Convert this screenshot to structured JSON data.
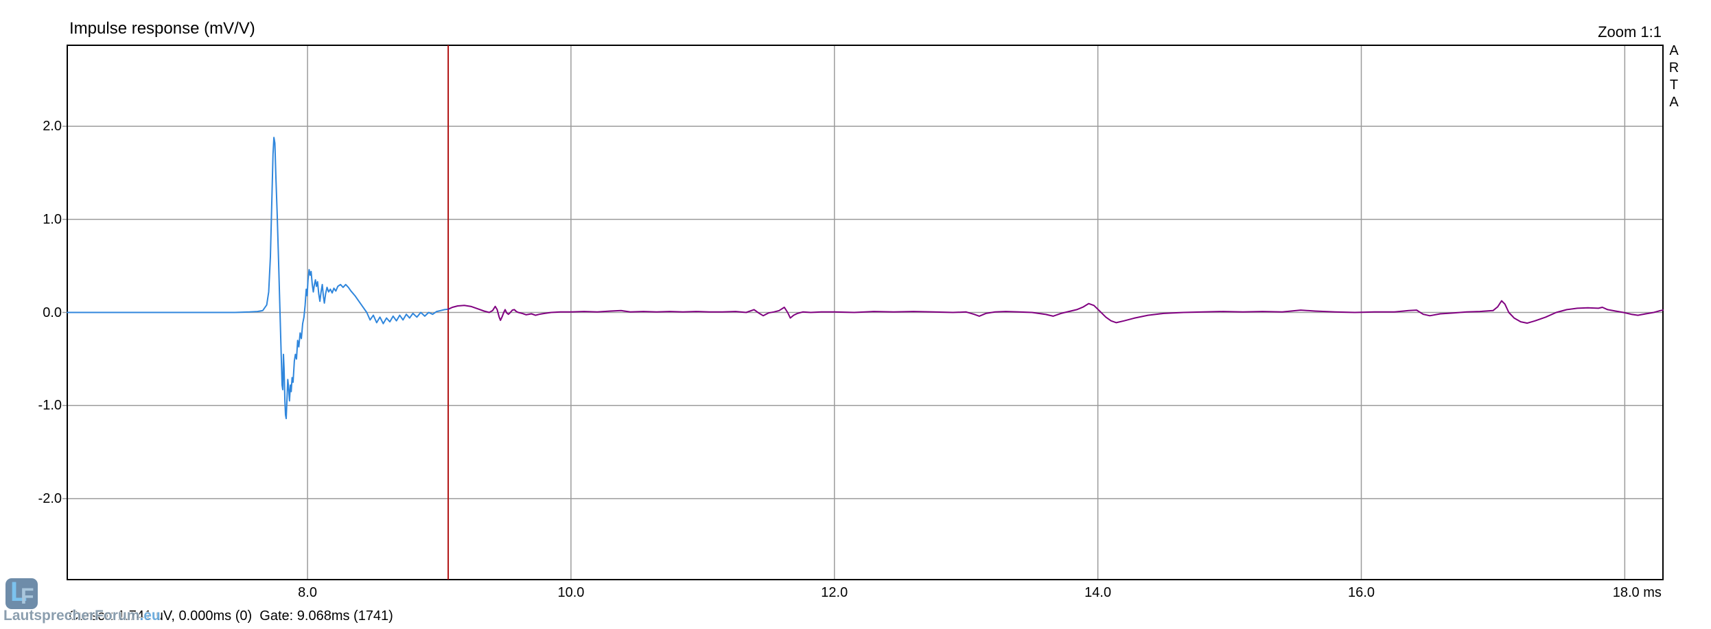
{
  "header": {
    "title": "Impulse response (mV/V)",
    "zoom_label": "Zoom 1:1",
    "brand": "ARTA"
  },
  "status_bar": {
    "text": "Cursor: 1.741 uV, 0.000ms (0)  Gate: 9.068ms (1741)"
  },
  "watermark": {
    "logo_l": "L",
    "logo_f": "F",
    "text_main": "LautsprecherForum",
    "text_tld": ".eu",
    "colors": {
      "logo_bg": "#6e8ca9",
      "logo_letter": "#7cc2ee",
      "text": "#8296a8",
      "tld": "#64a8dc"
    }
  },
  "chart_data": {
    "type": "line",
    "title": "Impulse response (mV/V)",
    "x_unit": "ms",
    "xlim": [
      6.176,
      18.29
    ],
    "ylim": [
      -2.87,
      2.87
    ],
    "x_ticks": [
      8,
      10,
      12,
      14,
      16,
      18
    ],
    "x_tick_labels": [
      "8.0",
      "10.0",
      "12.0",
      "14.0",
      "16.0",
      "18.0 ms"
    ],
    "y_ticks": [
      2,
      1,
      0,
      -1,
      -2
    ],
    "y_tick_labels": [
      "2.0",
      "1.0",
      "0.0",
      "-1.0",
      "-2.0"
    ],
    "grid": true,
    "legend": "none",
    "cursor": {
      "value_uV": 1.741,
      "time_ms": 0.0,
      "sample": 0
    },
    "gate": {
      "time_ms": 9.068,
      "sample": 1741
    },
    "colors": {
      "pre_gate": "#2f86dc",
      "post_gate": "#800080",
      "gate_line": "#b01212",
      "grid": "#9b9b9b",
      "border": "#000000"
    },
    "series": [
      {
        "name": "impulse-pre-gate",
        "color_key": "pre_gate",
        "points": [
          [
            6.176,
            0
          ],
          [
            6.5,
            0
          ],
          [
            6.9,
            0
          ],
          [
            7.2,
            0
          ],
          [
            7.45,
            0
          ],
          [
            7.56,
            0.005
          ],
          [
            7.62,
            0.01
          ],
          [
            7.66,
            0.02
          ],
          [
            7.69,
            0.08
          ],
          [
            7.705,
            0.22
          ],
          [
            7.718,
            0.6
          ],
          [
            7.728,
            1.15
          ],
          [
            7.738,
            1.7
          ],
          [
            7.745,
            1.88
          ],
          [
            7.752,
            1.82
          ],
          [
            7.76,
            1.45
          ],
          [
            7.77,
            1.05
          ],
          [
            7.78,
            0.55
          ],
          [
            7.79,
            0.05
          ],
          [
            7.8,
            -0.45
          ],
          [
            7.807,
            -0.78
          ],
          [
            7.812,
            -0.83
          ],
          [
            7.817,
            -0.45
          ],
          [
            7.822,
            -0.6
          ],
          [
            7.828,
            -0.95
          ],
          [
            7.833,
            -1.1
          ],
          [
            7.838,
            -1.14
          ],
          [
            7.845,
            -0.9
          ],
          [
            7.85,
            -0.72
          ],
          [
            7.856,
            -0.8
          ],
          [
            7.863,
            -0.95
          ],
          [
            7.87,
            -0.78
          ],
          [
            7.876,
            -0.85
          ],
          [
            7.883,
            -0.7
          ],
          [
            7.89,
            -0.75
          ],
          [
            7.9,
            -0.52
          ],
          [
            7.908,
            -0.45
          ],
          [
            7.916,
            -0.5
          ],
          [
            7.925,
            -0.3
          ],
          [
            7.934,
            -0.37
          ],
          [
            7.944,
            -0.22
          ],
          [
            7.953,
            -0.28
          ],
          [
            7.963,
            -0.12
          ],
          [
            7.973,
            -0.05
          ],
          [
            7.982,
            0.08
          ],
          [
            7.99,
            0.25
          ],
          [
            7.997,
            0.18
          ],
          [
            8.004,
            0.35
          ],
          [
            8.012,
            0.46
          ],
          [
            8.02,
            0.4
          ],
          [
            8.027,
            0.44
          ],
          [
            8.036,
            0.3
          ],
          [
            8.044,
            0.22
          ],
          [
            8.052,
            0.3
          ],
          [
            8.06,
            0.35
          ],
          [
            8.068,
            0.28
          ],
          [
            8.076,
            0.33
          ],
          [
            8.085,
            0.2
          ],
          [
            8.094,
            0.12
          ],
          [
            8.103,
            0.22
          ],
          [
            8.112,
            0.3
          ],
          [
            8.12,
            0.18
          ],
          [
            8.128,
            0.1
          ],
          [
            8.137,
            0.2
          ],
          [
            8.148,
            0.27
          ],
          [
            8.16,
            0.22
          ],
          [
            8.173,
            0.25
          ],
          [
            8.187,
            0.21
          ],
          [
            8.2,
            0.26
          ],
          [
            8.215,
            0.23
          ],
          [
            8.23,
            0.28
          ],
          [
            8.25,
            0.3
          ],
          [
            8.27,
            0.27
          ],
          [
            8.29,
            0.3
          ],
          [
            8.31,
            0.27
          ],
          [
            8.33,
            0.23
          ],
          [
            8.36,
            0.18
          ],
          [
            8.39,
            0.12
          ],
          [
            8.42,
            0.06
          ],
          [
            8.45,
            0.0
          ],
          [
            8.475,
            -0.08
          ],
          [
            8.5,
            -0.03
          ],
          [
            8.525,
            -0.11
          ],
          [
            8.55,
            -0.05
          ],
          [
            8.575,
            -0.12
          ],
          [
            8.6,
            -0.06
          ],
          [
            8.625,
            -0.1
          ],
          [
            8.65,
            -0.04
          ],
          [
            8.675,
            -0.09
          ],
          [
            8.7,
            -0.03
          ],
          [
            8.725,
            -0.08
          ],
          [
            8.75,
            -0.02
          ],
          [
            8.775,
            -0.06
          ],
          [
            8.8,
            -0.01
          ],
          [
            8.83,
            -0.05
          ],
          [
            8.86,
            0.0
          ],
          [
            8.89,
            -0.04
          ],
          [
            8.92,
            0.0
          ],
          [
            8.95,
            -0.02
          ],
          [
            8.98,
            0.01
          ],
          [
            9.01,
            0.02
          ],
          [
            9.04,
            0.03
          ],
          [
            9.068,
            0.035
          ]
        ]
      },
      {
        "name": "impulse-post-gate",
        "color_key": "post_gate",
        "points": [
          [
            9.068,
            0.035
          ],
          [
            9.1,
            0.055
          ],
          [
            9.14,
            0.07
          ],
          [
            9.19,
            0.075
          ],
          [
            9.24,
            0.065
          ],
          [
            9.29,
            0.04
          ],
          [
            9.34,
            0.015
          ],
          [
            9.38,
            0.0
          ],
          [
            9.405,
            0.02
          ],
          [
            9.425,
            0.065
          ],
          [
            9.44,
            0.03
          ],
          [
            9.455,
            -0.05
          ],
          [
            9.465,
            -0.085
          ],
          [
            9.478,
            -0.045
          ],
          [
            9.49,
            0.0
          ],
          [
            9.5,
            0.03
          ],
          [
            9.512,
            -0.005
          ],
          [
            9.525,
            -0.02
          ],
          [
            9.54,
            0.0
          ],
          [
            9.555,
            0.025
          ],
          [
            9.57,
            0.03
          ],
          [
            9.585,
            0.01
          ],
          [
            9.6,
            0.0
          ],
          [
            9.63,
            -0.01
          ],
          [
            9.66,
            -0.025
          ],
          [
            9.7,
            -0.015
          ],
          [
            9.73,
            -0.03
          ],
          [
            9.76,
            -0.02
          ],
          [
            9.8,
            -0.01
          ],
          [
            9.85,
            0.0
          ],
          [
            9.92,
            0.005
          ],
          [
            10.0,
            0.005
          ],
          [
            10.1,
            0.01
          ],
          [
            10.2,
            0.005
          ],
          [
            10.3,
            0.015
          ],
          [
            10.38,
            0.02
          ],
          [
            10.45,
            0.005
          ],
          [
            10.55,
            0.01
          ],
          [
            10.65,
            0.005
          ],
          [
            10.75,
            0.01
          ],
          [
            10.85,
            0.005
          ],
          [
            10.95,
            0.01
          ],
          [
            11.05,
            0.005
          ],
          [
            11.15,
            0.005
          ],
          [
            11.25,
            0.01
          ],
          [
            11.33,
            0.0
          ],
          [
            11.39,
            0.03
          ],
          [
            11.43,
            -0.01
          ],
          [
            11.46,
            -0.035
          ],
          [
            11.5,
            -0.005
          ],
          [
            11.54,
            0.005
          ],
          [
            11.58,
            0.02
          ],
          [
            11.62,
            0.055
          ],
          [
            11.645,
            0.0
          ],
          [
            11.665,
            -0.06
          ],
          [
            11.69,
            -0.03
          ],
          [
            11.72,
            -0.01
          ],
          [
            11.76,
            0.005
          ],
          [
            11.82,
            0.0
          ],
          [
            11.9,
            0.005
          ],
          [
            12.0,
            0.005
          ],
          [
            12.15,
            0.0
          ],
          [
            12.3,
            0.01
          ],
          [
            12.45,
            0.005
          ],
          [
            12.6,
            0.01
          ],
          [
            12.75,
            0.005
          ],
          [
            12.9,
            0.0
          ],
          [
            13.0,
            0.005
          ],
          [
            13.06,
            -0.02
          ],
          [
            13.1,
            -0.04
          ],
          [
            13.15,
            -0.01
          ],
          [
            13.22,
            0.005
          ],
          [
            13.3,
            0.01
          ],
          [
            13.4,
            0.005
          ],
          [
            13.5,
            0.0
          ],
          [
            13.6,
            -0.02
          ],
          [
            13.66,
            -0.04
          ],
          [
            13.72,
            -0.01
          ],
          [
            13.78,
            0.01
          ],
          [
            13.84,
            0.03
          ],
          [
            13.89,
            0.06
          ],
          [
            13.93,
            0.095
          ],
          [
            13.97,
            0.075
          ],
          [
            14.01,
            0.02
          ],
          [
            14.06,
            -0.05
          ],
          [
            14.1,
            -0.09
          ],
          [
            14.14,
            -0.11
          ],
          [
            14.2,
            -0.09
          ],
          [
            14.28,
            -0.06
          ],
          [
            14.38,
            -0.03
          ],
          [
            14.5,
            -0.01
          ],
          [
            14.65,
            0.0
          ],
          [
            14.8,
            0.005
          ],
          [
            14.95,
            0.01
          ],
          [
            15.1,
            0.005
          ],
          [
            15.25,
            0.01
          ],
          [
            15.4,
            0.005
          ],
          [
            15.54,
            0.025
          ],
          [
            15.65,
            0.015
          ],
          [
            15.8,
            0.005
          ],
          [
            15.95,
            0.0
          ],
          [
            16.1,
            0.005
          ],
          [
            16.25,
            0.005
          ],
          [
            16.36,
            0.02
          ],
          [
            16.42,
            0.025
          ],
          [
            16.47,
            -0.02
          ],
          [
            16.52,
            -0.035
          ],
          [
            16.6,
            -0.015
          ],
          [
            16.7,
            -0.005
          ],
          [
            16.8,
            0.005
          ],
          [
            16.9,
            0.01
          ],
          [
            17.0,
            0.02
          ],
          [
            17.035,
            0.06
          ],
          [
            17.065,
            0.125
          ],
          [
            17.09,
            0.09
          ],
          [
            17.12,
            0.0
          ],
          [
            17.16,
            -0.06
          ],
          [
            17.21,
            -0.1
          ],
          [
            17.26,
            -0.115
          ],
          [
            17.32,
            -0.09
          ],
          [
            17.4,
            -0.05
          ],
          [
            17.48,
            0.0
          ],
          [
            17.56,
            0.03
          ],
          [
            17.64,
            0.045
          ],
          [
            17.72,
            0.05
          ],
          [
            17.8,
            0.045
          ],
          [
            17.83,
            0.055
          ],
          [
            17.87,
            0.03
          ],
          [
            17.93,
            0.015
          ],
          [
            17.99,
            0.0
          ],
          [
            18.05,
            -0.02
          ],
          [
            18.1,
            -0.03
          ],
          [
            18.16,
            -0.015
          ],
          [
            18.22,
            0.0
          ],
          [
            18.27,
            0.02
          ],
          [
            18.29,
            0.025
          ]
        ]
      }
    ]
  }
}
